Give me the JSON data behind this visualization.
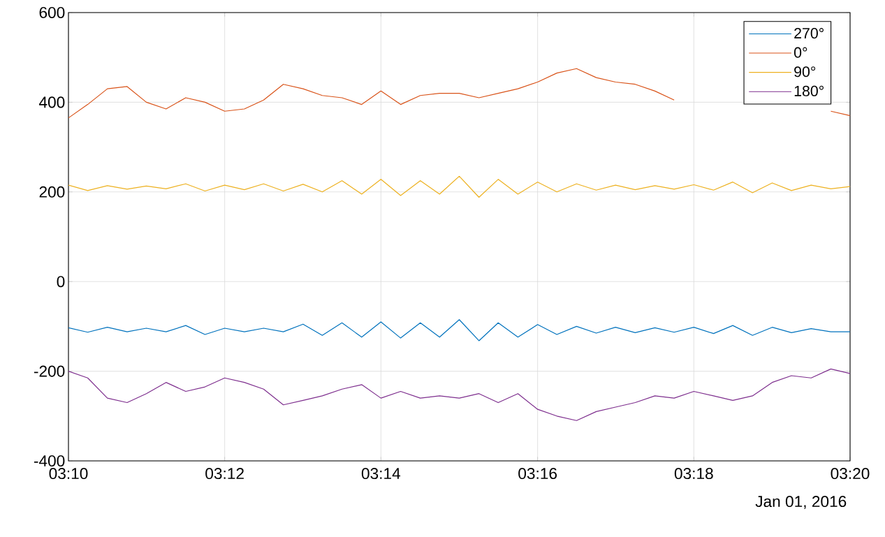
{
  "chart_data": {
    "type": "line",
    "xlabel": "Jan 01, 2016",
    "x": [
      3.1667,
      3.1708,
      3.175,
      3.1792,
      3.1833,
      3.1875,
      3.1917,
      3.1958,
      3.2,
      3.2042,
      3.2083,
      3.2125,
      3.2167,
      3.2208,
      3.225,
      3.2292,
      3.2333,
      3.2375,
      3.2417,
      3.2458,
      3.25,
      3.2542,
      3.2583,
      3.2625,
      3.2667,
      3.2708,
      3.275,
      3.2792,
      3.2833,
      3.2875,
      3.2917,
      3.2958,
      3.3,
      3.3042,
      3.3083,
      3.3125,
      3.3167,
      3.3208,
      3.325,
      3.3292,
      3.3333
    ],
    "xlim": [
      3.1667,
      3.3333
    ],
    "xticks": [
      {
        "value": 3.1667,
        "label": "03:10"
      },
      {
        "value": 3.2,
        "label": "03:12"
      },
      {
        "value": 3.2333,
        "label": "03:14"
      },
      {
        "value": 3.2667,
        "label": "03:16"
      },
      {
        "value": 3.3,
        "label": "03:18"
      },
      {
        "value": 3.3333,
        "label": "03:20"
      }
    ],
    "ylim": [
      -400,
      600
    ],
    "yticks": [
      -400,
      -200,
      0,
      200,
      400,
      600
    ],
    "grid": true,
    "legend": "top right",
    "series": [
      {
        "name": "270°",
        "color": "#0072bd",
        "values": [
          -103,
          -113,
          -102,
          -112,
          -104,
          -112,
          -98,
          -118,
          -104,
          -112,
          -104,
          -112,
          -95,
          -120,
          -92,
          -124,
          -90,
          -126,
          -92,
          -124,
          -85,
          -132,
          -92,
          -124,
          -96,
          -118,
          -100,
          -115,
          -102,
          -114,
          -103,
          -113,
          -102,
          -116,
          -98,
          -120,
          -102,
          -114,
          -105,
          -112,
          -112
        ]
      },
      {
        "name": "0°",
        "color": "#d95319",
        "values": [
          365,
          395,
          430,
          435,
          400,
          385,
          410,
          400,
          380,
          385,
          405,
          440,
          430,
          415,
          410,
          395,
          425,
          395,
          415,
          420,
          420,
          410,
          420,
          430,
          445,
          465,
          475,
          455,
          445,
          440,
          425,
          405,
          null,
          null,
          null,
          null,
          null,
          null,
          null,
          380,
          370
        ]
      },
      {
        "name": "90°",
        "color": "#edb120",
        "values": [
          215,
          203,
          214,
          206,
          213,
          207,
          218,
          202,
          215,
          205,
          218,
          202,
          217,
          200,
          225,
          195,
          228,
          192,
          225,
          195,
          235,
          188,
          228,
          195,
          222,
          200,
          218,
          204,
          215,
          205,
          214,
          206,
          216,
          204,
          222,
          198,
          220,
          203,
          215,
          207,
          212
        ]
      },
      {
        "name": "180°",
        "color": "#7e2f8e",
        "values": [
          -200,
          -215,
          -260,
          -270,
          -250,
          -225,
          -245,
          -235,
          -215,
          -225,
          -240,
          -275,
          -265,
          -255,
          -240,
          -230,
          -260,
          -245,
          -260,
          -255,
          -260,
          -250,
          -270,
          -250,
          -285,
          -300,
          -310,
          -290,
          -280,
          -270,
          -255,
          -260,
          -245,
          -255,
          -265,
          -255,
          -225,
          -210,
          -215,
          -195,
          -205
        ]
      }
    ]
  }
}
